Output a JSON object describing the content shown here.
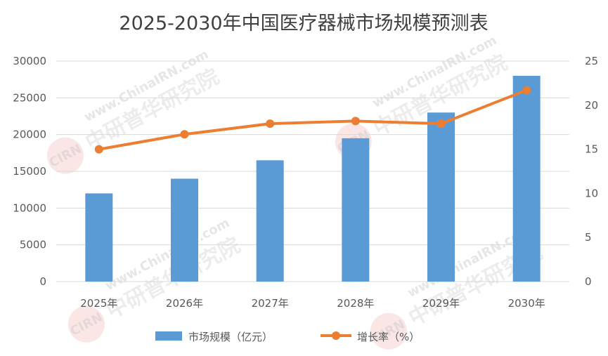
{
  "chart_data": {
    "type": "bar",
    "title": "2025-2030年中国医疗器械市场规模预测表",
    "categories": [
      "2025年",
      "2026年",
      "2027年",
      "2028年",
      "2029年",
      "2030年"
    ],
    "series": [
      {
        "name": "市场规模（亿元）",
        "type": "bar",
        "axis": "left",
        "color": "#5b9bd5",
        "values": [
          12000,
          14000,
          16500,
          19500,
          23000,
          28000
        ]
      },
      {
        "name": "增长率（%）",
        "type": "line",
        "axis": "right",
        "color": "#ed7d31",
        "values": [
          15.0,
          16.7,
          17.9,
          18.2,
          17.9,
          21.7
        ]
      }
    ],
    "y_left": {
      "ylim": [
        0,
        30000
      ],
      "ticks": [
        "0",
        "5000",
        "10000",
        "15000",
        "20000",
        "25000",
        "30000"
      ]
    },
    "y_right": {
      "ylim": [
        0,
        25
      ],
      "ticks": [
        "0",
        "5",
        "10",
        "15",
        "20",
        "25"
      ]
    },
    "grid": true,
    "legend_position": "bottom"
  },
  "watermark": {
    "url": "www.ChinaIRN.com",
    "name": "中研普华研究院",
    "logo": "CIRN"
  }
}
